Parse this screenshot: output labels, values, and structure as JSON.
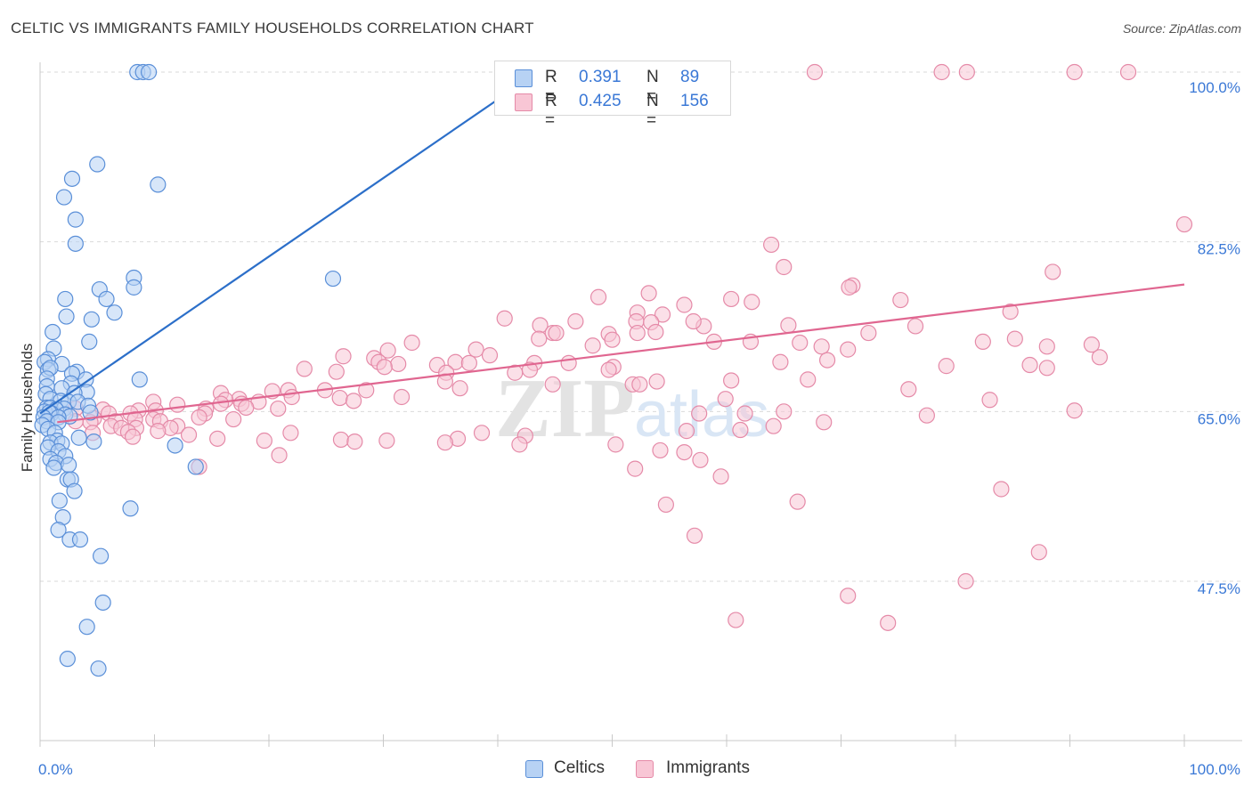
{
  "title": "CELTIC VS IMMIGRANTS FAMILY HOUSEHOLDS CORRELATION CHART",
  "source": "Source: ZipAtlas.com",
  "watermark": {
    "zip": "ZIP",
    "atlas": "atlas"
  },
  "legend_top": [
    {
      "r_label": "R =",
      "r_value": "0.391",
      "n_label": "N =",
      "n_value": "89"
    },
    {
      "r_label": "R =",
      "r_value": "0.425",
      "n_label": "N =",
      "n_value": "156"
    }
  ],
  "legend_bottom": [
    "Celtics",
    "Immigrants"
  ],
  "colors": {
    "blue_fill": "#b7d2f4",
    "blue_stroke": "#5a8fd8",
    "blue_line": "#2c6fc9",
    "pink_fill": "#f8c6d5",
    "pink_stroke": "#e58aa8",
    "pink_line": "#e06690",
    "axis_label": "#3a78d6",
    "grid": "#d9d9d9"
  },
  "chart_data": {
    "type": "scatter",
    "title": "CELTIC VS IMMIGRANTS FAMILY HOUSEHOLDS CORRELATION CHART",
    "xlabel": "",
    "ylabel": "Family Households",
    "xlim": [
      0,
      100
    ],
    "ylim": [
      30,
      102
    ],
    "x_tick_labels": [
      "0.0%",
      "100.0%"
    ],
    "y_ticks": [
      47.5,
      65.0,
      82.5,
      100.0
    ],
    "y_tick_labels": [
      "47.5%",
      "65.0%",
      "82.5%",
      "100.0%"
    ],
    "series": [
      {
        "name": "Celtics",
        "r": 0.391,
        "n": 89,
        "trend": [
          [
            0,
            64.8
          ],
          [
            43.5,
            100.0
          ]
        ],
        "points": [
          [
            8.5,
            100
          ],
          [
            9.0,
            100
          ],
          [
            9.5,
            100
          ],
          [
            5.0,
            90.5
          ],
          [
            2.8,
            89.0
          ],
          [
            10.3,
            88.4
          ],
          [
            2.1,
            87.1
          ],
          [
            3.1,
            84.8
          ],
          [
            3.1,
            82.3
          ],
          [
            8.2,
            78.8
          ],
          [
            25.6,
            78.7
          ],
          [
            8.2,
            77.8
          ],
          [
            5.2,
            77.6
          ],
          [
            2.2,
            76.6
          ],
          [
            5.8,
            76.6
          ],
          [
            6.5,
            75.2
          ],
          [
            2.3,
            74.8
          ],
          [
            4.5,
            74.5
          ],
          [
            1.1,
            73.2
          ],
          [
            4.3,
            72.2
          ],
          [
            1.2,
            71.5
          ],
          [
            0.7,
            70.4
          ],
          [
            0.4,
            70.1
          ],
          [
            1.9,
            69.9
          ],
          [
            0.7,
            69.3
          ],
          [
            0.9,
            69.5
          ],
          [
            3.2,
            69.1
          ],
          [
            2.8,
            68.9
          ],
          [
            0.6,
            68.4
          ],
          [
            4.0,
            68.3
          ],
          [
            8.7,
            68.3
          ],
          [
            2.7,
            67.9
          ],
          [
            0.6,
            67.6
          ],
          [
            1.9,
            67.4
          ],
          [
            4.1,
            67.0
          ],
          [
            3.0,
            66.9
          ],
          [
            0.5,
            66.8
          ],
          [
            0.9,
            66.3
          ],
          [
            1.8,
            66.1
          ],
          [
            2.5,
            66.0
          ],
          [
            3.3,
            66.0
          ],
          [
            4.2,
            65.6
          ],
          [
            0.6,
            65.4
          ],
          [
            0.9,
            65.4
          ],
          [
            2.1,
            65.3
          ],
          [
            1.4,
            65.2
          ],
          [
            0.4,
            65.0
          ],
          [
            1.0,
            64.8
          ],
          [
            2.2,
            64.7
          ],
          [
            2.6,
            64.5
          ],
          [
            0.8,
            64.9
          ],
          [
            1.6,
            64.4
          ],
          [
            4.4,
            64.9
          ],
          [
            0.3,
            64.4
          ],
          [
            0.6,
            64.0
          ],
          [
            1.6,
            63.9
          ],
          [
            0.2,
            63.6
          ],
          [
            0.7,
            63.2
          ],
          [
            1.3,
            62.8
          ],
          [
            3.4,
            62.3
          ],
          [
            1.5,
            62.0
          ],
          [
            4.7,
            61.9
          ],
          [
            0.9,
            61.8
          ],
          [
            1.9,
            61.7
          ],
          [
            0.7,
            61.3
          ],
          [
            11.8,
            61.5
          ],
          [
            1.6,
            60.9
          ],
          [
            2.2,
            60.4
          ],
          [
            0.9,
            60.1
          ],
          [
            1.4,
            59.7
          ],
          [
            2.5,
            59.5
          ],
          [
            1.2,
            59.2
          ],
          [
            13.6,
            59.3
          ],
          [
            2.4,
            58.0
          ],
          [
            2.7,
            58.0
          ],
          [
            3.0,
            56.8
          ],
          [
            1.7,
            55.8
          ],
          [
            7.9,
            55.0
          ],
          [
            2.0,
            54.1
          ],
          [
            1.6,
            52.8
          ],
          [
            2.6,
            51.8
          ],
          [
            3.5,
            51.8
          ],
          [
            5.3,
            50.1
          ],
          [
            5.5,
            45.3
          ],
          [
            4.1,
            42.8
          ],
          [
            2.4,
            39.5
          ],
          [
            5.1,
            38.5
          ]
        ]
      },
      {
        "name": "Immigrants",
        "r": 0.425,
        "n": 156,
        "trend": [
          [
            1.5,
            63.9
          ],
          [
            100,
            78.1
          ]
        ],
        "points": [
          [
            67.7,
            100
          ],
          [
            78.8,
            100
          ],
          [
            81.0,
            100
          ],
          [
            90.4,
            100
          ],
          [
            95.1,
            100
          ],
          [
            100,
            84.3
          ],
          [
            63.9,
            82.2
          ],
          [
            65.0,
            79.9
          ],
          [
            88.5,
            79.4
          ],
          [
            71.0,
            78.0
          ],
          [
            70.7,
            77.8
          ],
          [
            48.8,
            76.8
          ],
          [
            53.2,
            77.2
          ],
          [
            60.4,
            76.6
          ],
          [
            75.2,
            76.5
          ],
          [
            56.3,
            76.0
          ],
          [
            62.2,
            76.3
          ],
          [
            54.4,
            75.0
          ],
          [
            52.2,
            75.2
          ],
          [
            58.0,
            73.8
          ],
          [
            57.1,
            74.3
          ],
          [
            52.1,
            74.3
          ],
          [
            53.4,
            74.2
          ],
          [
            40.6,
            74.6
          ],
          [
            43.7,
            73.9
          ],
          [
            46.8,
            74.3
          ],
          [
            44.8,
            73.1
          ],
          [
            45.1,
            73.1
          ],
          [
            52.2,
            73.1
          ],
          [
            53.8,
            73.2
          ],
          [
            65.4,
            73.9
          ],
          [
            49.7,
            73.0
          ],
          [
            43.6,
            72.5
          ],
          [
            50.0,
            72.4
          ],
          [
            58.9,
            72.2
          ],
          [
            62.1,
            72.2
          ],
          [
            66.4,
            72.1
          ],
          [
            32.5,
            72.1
          ],
          [
            48.3,
            71.8
          ],
          [
            68.3,
            71.7
          ],
          [
            70.6,
            71.4
          ],
          [
            30.4,
            71.3
          ],
          [
            38.1,
            71.4
          ],
          [
            26.5,
            70.7
          ],
          [
            39.3,
            70.8
          ],
          [
            29.2,
            70.5
          ],
          [
            36.3,
            70.1
          ],
          [
            46.2,
            70.0
          ],
          [
            64.7,
            70.1
          ],
          [
            29.6,
            70.1
          ],
          [
            31.3,
            69.9
          ],
          [
            34.7,
            69.8
          ],
          [
            37.5,
            70.0
          ],
          [
            43.2,
            70.0
          ],
          [
            41.5,
            69.0
          ],
          [
            68.8,
            70.3
          ],
          [
            23.1,
            69.4
          ],
          [
            30.1,
            69.6
          ],
          [
            50.1,
            69.6
          ],
          [
            25.9,
            69.1
          ],
          [
            35.5,
            69.0
          ],
          [
            42.8,
            69.3
          ],
          [
            49.7,
            69.3
          ],
          [
            60.4,
            68.2
          ],
          [
            67.1,
            68.3
          ],
          [
            53.9,
            68.1
          ],
          [
            51.8,
            67.8
          ],
          [
            44.8,
            67.8
          ],
          [
            35.4,
            68.1
          ],
          [
            52.4,
            67.8
          ],
          [
            36.7,
            67.4
          ],
          [
            21.7,
            67.2
          ],
          [
            24.9,
            67.2
          ],
          [
            28.5,
            67.2
          ],
          [
            20.3,
            67.1
          ],
          [
            15.8,
            66.9
          ],
          [
            22.0,
            66.5
          ],
          [
            26.2,
            66.4
          ],
          [
            27.4,
            66.1
          ],
          [
            31.6,
            66.5
          ],
          [
            17.4,
            66.3
          ],
          [
            16.2,
            66.2
          ],
          [
            19.1,
            66.0
          ],
          [
            9.9,
            66.0
          ],
          [
            15.8,
            65.8
          ],
          [
            12.0,
            65.7
          ],
          [
            17.6,
            65.8
          ],
          [
            18.0,
            65.4
          ],
          [
            20.8,
            65.3
          ],
          [
            14.5,
            65.3
          ],
          [
            8.6,
            65.1
          ],
          [
            10.1,
            65.1
          ],
          [
            5.5,
            65.2
          ],
          [
            3.1,
            65.3
          ],
          [
            6.0,
            64.8
          ],
          [
            7.9,
            64.8
          ],
          [
            14.4,
            64.8
          ],
          [
            4.7,
            64.3
          ],
          [
            13.9,
            64.4
          ],
          [
            16.9,
            64.2
          ],
          [
            8.3,
            64.2
          ],
          [
            9.9,
            64.2
          ],
          [
            10.5,
            64.0
          ],
          [
            6.6,
            64.0
          ],
          [
            4.4,
            63.9
          ],
          [
            3.1,
            64.0
          ],
          [
            6.2,
            63.5
          ],
          [
            12.0,
            63.5
          ],
          [
            7.1,
            63.3
          ],
          [
            8.4,
            63.3
          ],
          [
            11.4,
            63.3
          ],
          [
            10.3,
            63.0
          ],
          [
            7.7,
            62.9
          ],
          [
            4.6,
            62.8
          ],
          [
            21.9,
            62.8
          ],
          [
            13.0,
            62.6
          ],
          [
            8.1,
            62.4
          ],
          [
            15.5,
            62.2
          ],
          [
            26.3,
            62.1
          ],
          [
            30.3,
            62.0
          ],
          [
            19.6,
            62.0
          ],
          [
            42.4,
            62.5
          ],
          [
            38.6,
            62.8
          ],
          [
            36.5,
            62.2
          ],
          [
            27.5,
            61.9
          ],
          [
            41.9,
            61.6
          ],
          [
            20.9,
            60.5
          ],
          [
            35.4,
            61.8
          ],
          [
            13.9,
            59.3
          ],
          [
            52.0,
            59.1
          ],
          [
            57.7,
            60.0
          ],
          [
            56.3,
            60.8
          ],
          [
            59.9,
            66.3
          ],
          [
            64.1,
            63.5
          ],
          [
            83.0,
            66.2
          ],
          [
            90.4,
            65.1
          ],
          [
            77.5,
            64.6
          ],
          [
            61.6,
            64.8
          ],
          [
            57.6,
            64.8
          ],
          [
            75.9,
            67.3
          ],
          [
            85.2,
            72.5
          ],
          [
            88.0,
            71.7
          ],
          [
            86.5,
            69.8
          ],
          [
            92.6,
            70.6
          ],
          [
            88.0,
            69.5
          ],
          [
            79.2,
            69.7
          ],
          [
            91.9,
            71.9
          ],
          [
            66.2,
            55.7
          ],
          [
            59.5,
            58.3
          ],
          [
            54.7,
            55.4
          ],
          [
            84.0,
            57.0
          ],
          [
            87.3,
            50.5
          ],
          [
            54.2,
            61.0
          ],
          [
            56.5,
            63.0
          ],
          [
            50.3,
            61.6
          ],
          [
            61.2,
            63.1
          ],
          [
            68.5,
            63.9
          ],
          [
            57.2,
            52.2
          ],
          [
            70.6,
            46.0
          ],
          [
            80.9,
            47.5
          ],
          [
            60.8,
            43.5
          ],
          [
            74.1,
            43.2
          ],
          [
            65.0,
            65.0
          ],
          [
            84.8,
            75.3
          ],
          [
            82.4,
            72.2
          ],
          [
            76.5,
            73.8
          ],
          [
            72.4,
            73.1
          ]
        ]
      }
    ]
  }
}
